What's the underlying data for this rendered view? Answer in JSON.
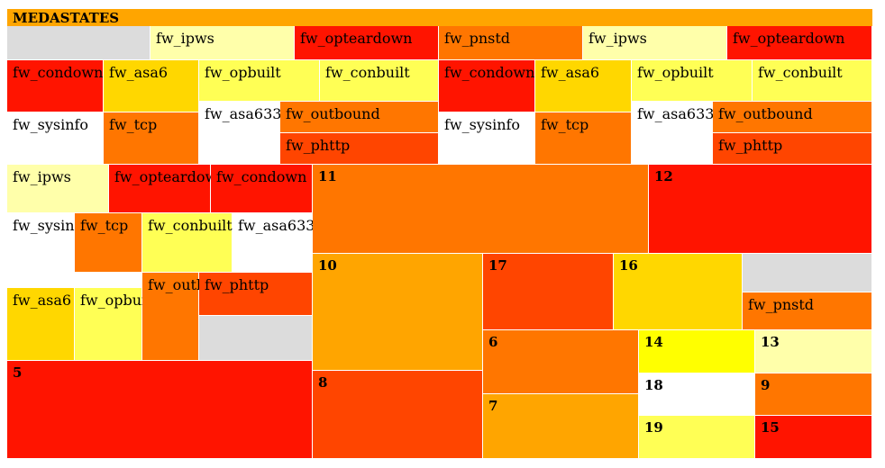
{
  "chart_data": {
    "type": "treemap",
    "title": "MEDASTATES",
    "colors": {
      "grey": "#DCDCDC",
      "pale_yellow": "#FFFFAA",
      "red": "#FF1400",
      "dark_orange": "#FF7600",
      "orange": "#FFA500",
      "gold": "#FFD700",
      "yellow": "#FFFF55",
      "white": "#FFFFFF",
      "red_orange": "#FF4500",
      "bright_yellow": "#FFFF00"
    },
    "groups": [
      {
        "id": "g1",
        "cells": [
          {
            "id": "g1-grey",
            "label": "",
            "color": "grey"
          },
          {
            "id": "g1-ipws",
            "label": "fw_ipws",
            "color": "pale_yellow"
          },
          {
            "id": "g1-opteardown",
            "label": "fw_opteardown",
            "color": "red"
          }
        ]
      },
      {
        "id": "g2",
        "cells": [
          {
            "id": "g2-pnstd",
            "label": "fw_pnstd",
            "color": "dark_orange"
          },
          {
            "id": "g2-ipws",
            "label": "fw_ipws",
            "color": "pale_yellow"
          },
          {
            "id": "g2-opteardown",
            "label": "fw_opteardown",
            "color": "red"
          }
        ]
      },
      {
        "id": "g3",
        "cells": [
          {
            "id": "g3-condown",
            "label": "fw_condown",
            "color": "red"
          },
          {
            "id": "g3-asa6",
            "label": "fw_asa6",
            "color": "gold"
          },
          {
            "id": "g3-opbuilt",
            "label": "fw_opbuilt",
            "color": "yellow"
          },
          {
            "id": "g3-conbuilt",
            "label": "fw_conbuilt",
            "color": "yellow"
          },
          {
            "id": "g3-sysinfo",
            "label": "fw_sysinfo",
            "color": "white"
          },
          {
            "id": "g3-tcp",
            "label": "fw_tcp",
            "color": "dark_orange"
          },
          {
            "id": "g3-asa633",
            "label": "fw_asa633",
            "color": "white"
          },
          {
            "id": "g3-outbound",
            "label": "fw_outbound",
            "color": "dark_orange"
          },
          {
            "id": "g3-phttp",
            "label": "fw_phttp",
            "color": "red_orange"
          }
        ]
      },
      {
        "id": "g4",
        "cells": [
          {
            "id": "g4-condown",
            "label": "fw_condown",
            "color": "red"
          },
          {
            "id": "g4-asa6",
            "label": "fw_asa6",
            "color": "gold"
          },
          {
            "id": "g4-opbuilt",
            "label": "fw_opbuilt",
            "color": "yellow"
          },
          {
            "id": "g4-conbuilt",
            "label": "fw_conbuilt",
            "color": "yellow"
          },
          {
            "id": "g4-sysinfo",
            "label": "fw_sysinfo",
            "color": "white"
          },
          {
            "id": "g4-tcp",
            "label": "fw_tcp",
            "color": "dark_orange"
          },
          {
            "id": "g4-asa633",
            "label": "fw_asa633",
            "color": "white"
          },
          {
            "id": "g4-outbound",
            "label": "fw_outbound",
            "color": "dark_orange"
          },
          {
            "id": "g4-phttp",
            "label": "fw_phttp",
            "color": "red_orange"
          }
        ]
      },
      {
        "id": "g5",
        "cells": [
          {
            "id": "g5-ipws",
            "label": "fw_ipws",
            "color": "pale_yellow"
          },
          {
            "id": "g5-opteardown",
            "label": "fw_opteardown",
            "color": "red"
          },
          {
            "id": "g5-condown",
            "label": "fw_condown",
            "color": "red"
          },
          {
            "id": "g5-sysinfo",
            "label": "fw_sysinfo",
            "color": "white"
          },
          {
            "id": "g5-tcp",
            "label": "fw_tcp",
            "color": "dark_orange"
          },
          {
            "id": "g5-conbuilt",
            "label": "fw_conbuilt",
            "color": "yellow"
          },
          {
            "id": "g5-asa633",
            "label": "fw_asa633",
            "color": "white"
          },
          {
            "id": "g5-asa6",
            "label": "fw_asa6",
            "color": "gold"
          },
          {
            "id": "g5-opbuilt",
            "label": "fw_opbuilt",
            "color": "yellow"
          },
          {
            "id": "g5-outbound",
            "label": "fw_outbound",
            "color": "dark_orange"
          },
          {
            "id": "g5-phttp",
            "label": "fw_phttp",
            "color": "red_orange"
          },
          {
            "id": "g5-grey",
            "label": "",
            "color": "grey"
          }
        ]
      },
      {
        "id": "g6",
        "cells": [
          {
            "id": "n11",
            "label": "11",
            "color": "dark_orange"
          },
          {
            "id": "n12",
            "label": "12",
            "color": "red"
          },
          {
            "id": "n10",
            "label": "10",
            "color": "orange"
          },
          {
            "id": "n17",
            "label": "17",
            "color": "red_orange"
          },
          {
            "id": "n16",
            "label": "16",
            "color": "gold"
          },
          {
            "id": "g6-grey",
            "label": "",
            "color": "grey"
          },
          {
            "id": "g6-pnstd",
            "label": "fw_pnstd",
            "color": "dark_orange"
          },
          {
            "id": "n6",
            "label": "6",
            "color": "dark_orange"
          },
          {
            "id": "n14",
            "label": "14",
            "color": "bright_yellow"
          },
          {
            "id": "n13",
            "label": "13",
            "color": "pale_yellow"
          },
          {
            "id": "n7",
            "label": "7",
            "color": "orange"
          },
          {
            "id": "n18",
            "label": "18",
            "color": "white"
          },
          {
            "id": "n9",
            "label": "9",
            "color": "dark_orange"
          },
          {
            "id": "n19",
            "label": "19",
            "color": "yellow"
          },
          {
            "id": "n15",
            "label": "15",
            "color": "red"
          },
          {
            "id": "n8",
            "label": "8",
            "color": "red_orange"
          },
          {
            "id": "n5",
            "label": "5",
            "color": "red"
          }
        ]
      }
    ]
  }
}
